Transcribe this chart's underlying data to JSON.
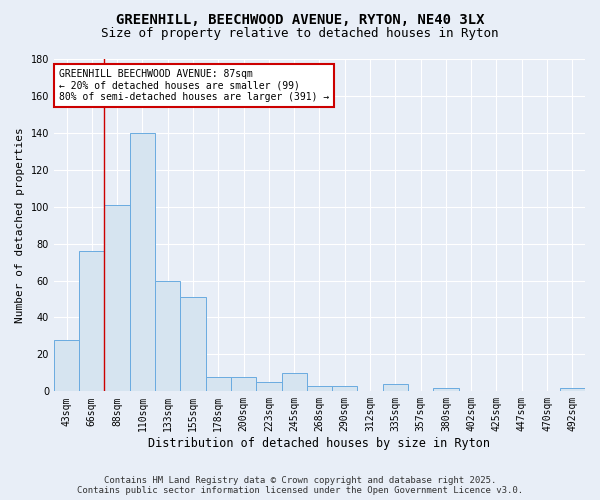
{
  "title": "GREENHILL, BEECHWOOD AVENUE, RYTON, NE40 3LX",
  "subtitle": "Size of property relative to detached houses in Ryton",
  "xlabel": "Distribution of detached houses by size in Ryton",
  "ylabel": "Number of detached properties",
  "bar_labels": [
    "43sqm",
    "66sqm",
    "88sqm",
    "110sqm",
    "133sqm",
    "155sqm",
    "178sqm",
    "200sqm",
    "223sqm",
    "245sqm",
    "268sqm",
    "290sqm",
    "312sqm",
    "335sqm",
    "357sqm",
    "380sqm",
    "402sqm",
    "425sqm",
    "447sqm",
    "470sqm",
    "492sqm"
  ],
  "bar_values": [
    28,
    76,
    101,
    140,
    60,
    51,
    8,
    8,
    5,
    10,
    3,
    3,
    0,
    4,
    0,
    2,
    0,
    0,
    0,
    0,
    2
  ],
  "bar_color": "#d6e4f0",
  "bar_edge_color": "#6aabe0",
  "highlight_index": 2,
  "highlight_line_color": "#cc0000",
  "ylim": [
    0,
    180
  ],
  "yticks": [
    0,
    20,
    40,
    60,
    80,
    100,
    120,
    140,
    160,
    180
  ],
  "annotation_text": "GREENHILL BEECHWOOD AVENUE: 87sqm\n← 20% of detached houses are smaller (99)\n80% of semi-detached houses are larger (391) →",
  "annotation_box_color": "#ffffff",
  "annotation_box_edge": "#cc0000",
  "footer_line1": "Contains HM Land Registry data © Crown copyright and database right 2025.",
  "footer_line2": "Contains public sector information licensed under the Open Government Licence v3.0.",
  "plot_bg_color": "#e8eef7",
  "fig_bg_color": "#e8eef7",
  "grid_color": "#ffffff",
  "title_fontsize": 10,
  "subtitle_fontsize": 9,
  "axis_label_fontsize": 8,
  "tick_fontsize": 7,
  "annotation_fontsize": 7,
  "footer_fontsize": 6.5
}
